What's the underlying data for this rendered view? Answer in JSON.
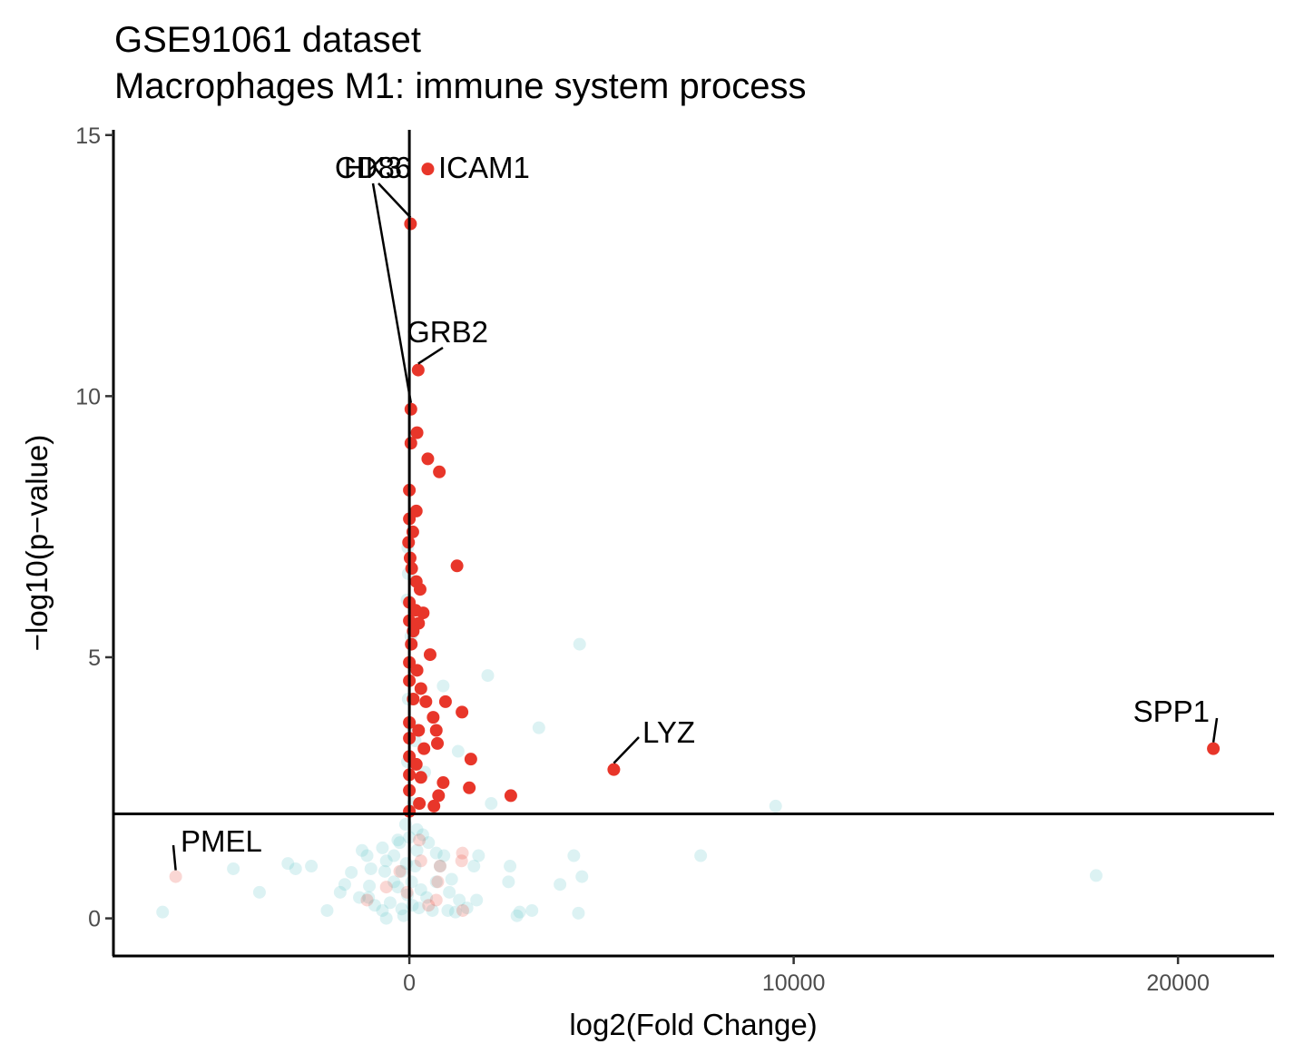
{
  "chart_data": {
    "type": "scatter",
    "title": "GSE91061 dataset",
    "subtitle": "Macrophages M1: immune system process",
    "xlabel": "log2(Fold Change)",
    "ylabel": "−log10(p−value)",
    "xlim": [
      -7700,
      22500
    ],
    "ylim": [
      -0.72,
      15.1
    ],
    "xticks": [
      0,
      10000,
      20000
    ],
    "xtick_labels": [
      "0",
      "10000",
      "20000"
    ],
    "yticks": [
      0,
      5,
      10,
      15
    ],
    "ytick_labels": [
      "0",
      "5",
      "10",
      "15"
    ],
    "grid": false,
    "legend": "none",
    "reference_lines": {
      "vertical_x": 0,
      "horizontal_y": 2.0
    },
    "colors": {
      "significant": "#e8362a",
      "not_significant": "#5fc4c9"
    },
    "series": [
      {
        "points": [
          [
            480,
            14.35
          ],
          [
            30,
            13.3
          ],
          [
            230,
            10.5
          ],
          [
            40,
            9.75
          ],
          [
            200,
            9.3
          ],
          [
            40,
            9.1
          ],
          [
            480,
            8.8
          ],
          [
            780,
            8.55
          ],
          [
            0,
            8.2
          ],
          [
            1240,
            6.75
          ],
          [
            180,
            7.8
          ],
          [
            0,
            7.65
          ],
          [
            90,
            7.4
          ],
          [
            -20,
            7.2
          ],
          [
            20,
            6.9
          ],
          [
            60,
            6.7
          ],
          [
            180,
            6.45
          ],
          [
            280,
            6.3
          ],
          [
            0,
            6.05
          ],
          [
            160,
            5.9
          ],
          [
            360,
            5.85
          ],
          [
            0,
            5.7
          ],
          [
            240,
            5.65
          ],
          [
            100,
            5.5
          ],
          [
            50,
            5.25
          ],
          [
            540,
            5.05
          ],
          [
            0,
            4.9
          ],
          [
            200,
            4.75
          ],
          [
            0,
            4.55
          ],
          [
            300,
            4.4
          ],
          [
            100,
            4.2
          ],
          [
            430,
            4.15
          ],
          [
            940,
            4.15
          ],
          [
            1370,
            3.95
          ],
          [
            620,
            3.85
          ],
          [
            0,
            3.75
          ],
          [
            240,
            3.6
          ],
          [
            700,
            3.6
          ],
          [
            0,
            3.45
          ],
          [
            730,
            3.35
          ],
          [
            380,
            3.25
          ],
          [
            0,
            3.1
          ],
          [
            1600,
            3.05
          ],
          [
            180,
            2.95
          ],
          [
            0,
            2.75
          ],
          [
            300,
            2.7
          ],
          [
            880,
            2.6
          ],
          [
            1560,
            2.5
          ],
          [
            0,
            2.45
          ],
          [
            2640,
            2.35
          ],
          [
            760,
            2.35
          ],
          [
            260,
            2.2
          ],
          [
            640,
            2.15
          ],
          [
            0,
            2.05
          ],
          [
            5320,
            2.85
          ],
          [
            20920,
            3.25
          ]
        ]
      },
      {
        "points": [
          [
            4430,
            5.25
          ],
          [
            2040,
            4.65
          ],
          [
            3370,
            3.65
          ],
          [
            880,
            4.45
          ],
          [
            1270,
            3.2
          ],
          [
            9530,
            2.15
          ],
          [
            2130,
            2.2
          ],
          [
            7580,
            1.2
          ],
          [
            17870,
            0.82
          ],
          [
            4280,
            1.2
          ],
          [
            4490,
            0.8
          ],
          [
            3920,
            0.65
          ],
          [
            4400,
            0.1
          ],
          [
            3190,
            0.15
          ],
          [
            2870,
            0.12
          ],
          [
            2800,
            0.05
          ],
          [
            1800,
            1.2
          ],
          [
            1680,
            1.0
          ],
          [
            2620,
            1.0
          ],
          [
            2580,
            0.7
          ],
          [
            1750,
            0.35
          ],
          [
            1040,
            0.5
          ],
          [
            -4580,
            0.95
          ],
          [
            -3900,
            0.5
          ],
          [
            -3160,
            1.05
          ],
          [
            -2960,
            0.95
          ],
          [
            -2550,
            1.0
          ],
          [
            -2140,
            0.15
          ],
          [
            -1510,
            0.88
          ],
          [
            -6420,
            0.12
          ],
          [
            -1230,
            1.3
          ],
          [
            -1680,
            0.65
          ],
          [
            -1060,
            0.4
          ],
          [
            -640,
            0.9
          ],
          [
            -600,
            1.1
          ],
          [
            -1040,
            0.62
          ],
          [
            -300,
            1.5
          ],
          [
            -900,
            0.25
          ],
          [
            -500,
            0.3
          ],
          [
            -200,
            0.18
          ],
          [
            250,
            0.2
          ],
          [
            600,
            0.15
          ],
          [
            1000,
            0.15
          ],
          [
            500,
            1.45
          ],
          [
            200,
            1.7
          ],
          [
            -100,
            1.8
          ],
          [
            100,
            2.2
          ],
          [
            400,
            2.8
          ],
          [
            -50,
            3.0
          ],
          [
            150,
            3.4
          ],
          [
            -40,
            7.1
          ],
          [
            -30,
            6.6
          ],
          [
            -60,
            6.1
          ],
          [
            40,
            5.4
          ],
          [
            -30,
            4.2
          ],
          [
            40,
            3.7
          ],
          [
            -400,
            0.7
          ],
          [
            700,
            0.7
          ],
          [
            800,
            1.0
          ],
          [
            -700,
            0.15
          ],
          [
            1200,
            0.12
          ],
          [
            -1300,
            0.4
          ],
          [
            300,
            0.55
          ],
          [
            -150,
            0.05
          ],
          [
            -600,
            0.0
          ],
          [
            150,
            1.0
          ],
          [
            -1100,
            1.2
          ],
          [
            -200,
            0.9
          ],
          [
            450,
            0.4
          ],
          [
            900,
            1.2
          ],
          [
            -300,
            0.6
          ],
          [
            -700,
            1.35
          ],
          [
            1300,
            0.35
          ],
          [
            200,
            1.3
          ],
          [
            60,
            0.7
          ],
          [
            -50,
            0.45
          ],
          [
            -80,
            1.05
          ],
          [
            80,
            0.25
          ],
          [
            -1800,
            0.5
          ],
          [
            1500,
            0.2
          ],
          [
            -400,
            1.2
          ],
          [
            700,
            1.25
          ],
          [
            0,
            1.55
          ],
          [
            -250,
            1.45
          ],
          [
            350,
            1.6
          ],
          [
            -1000,
            0.95
          ],
          [
            1100,
            0.75
          ]
        ]
      },
      {
        "points": [
          [
            -6080,
            0.8
          ],
          [
            1360,
            1.1
          ],
          [
            1380,
            1.25
          ],
          [
            1390,
            0.15
          ],
          [
            800,
            1.0
          ],
          [
            740,
            0.7
          ],
          [
            260,
            1.5
          ],
          [
            -250,
            0.9
          ],
          [
            -1100,
            0.35
          ],
          [
            500,
            0.25
          ],
          [
            -600,
            0.6
          ],
          [
            300,
            1.1
          ],
          [
            -60,
            0.5
          ],
          [
            700,
            0.35
          ]
        ]
      }
    ],
    "labels": [
      {
        "text": "ICAM1",
        "x": 480,
        "y": 14.35
      },
      {
        "text": "CD86",
        "x": 30,
        "y": 13.3
      },
      {
        "text": "HK3",
        "x": 40,
        "y": 9.75
      },
      {
        "text": "GRB2",
        "x": 230,
        "y": 10.5
      },
      {
        "text": "LYZ",
        "x": 5320,
        "y": 2.85
      },
      {
        "text": "SPP1",
        "x": 20920,
        "y": 3.25
      },
      {
        "text": "PMEL",
        "x": -6080,
        "y": 0.8
      }
    ]
  }
}
